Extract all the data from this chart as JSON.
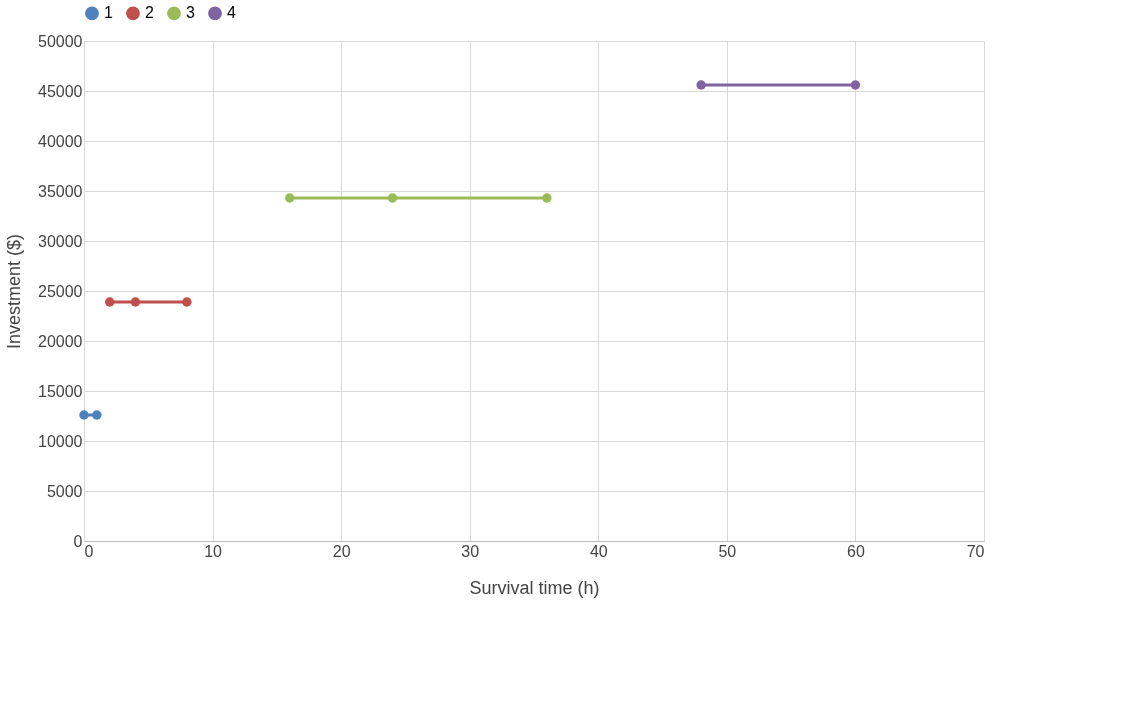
{
  "chart_data": {
    "type": "line",
    "xlabel": "Survival time (h)",
    "ylabel": "Investment ($)",
    "xlim": [
      0,
      70
    ],
    "xticks": [
      0,
      10,
      20,
      30,
      40,
      50,
      60,
      70
    ],
    "ylim": [
      0,
      50000
    ],
    "yticks": [
      0,
      5000,
      10000,
      15000,
      20000,
      25000,
      30000,
      35000,
      40000,
      45000,
      50000
    ],
    "grid": true,
    "legend": "top",
    "marker": "circle",
    "line_style": "solid",
    "series": [
      {
        "name": "1",
        "color": "#4f81bd",
        "x": [
          0,
          1
        ],
        "values": [
          12600,
          12600
        ]
      },
      {
        "name": "2",
        "color": "#c0504d",
        "x": [
          2,
          4,
          8
        ],
        "values": [
          23900,
          23900,
          23900
        ]
      },
      {
        "name": "3",
        "color": "#9bbb59",
        "x": [
          16,
          24,
          36
        ],
        "values": [
          34300,
          34300,
          34300
        ]
      },
      {
        "name": "4",
        "color": "#8064a2",
        "x": [
          48,
          60
        ],
        "values": [
          45600,
          45600
        ]
      }
    ]
  }
}
